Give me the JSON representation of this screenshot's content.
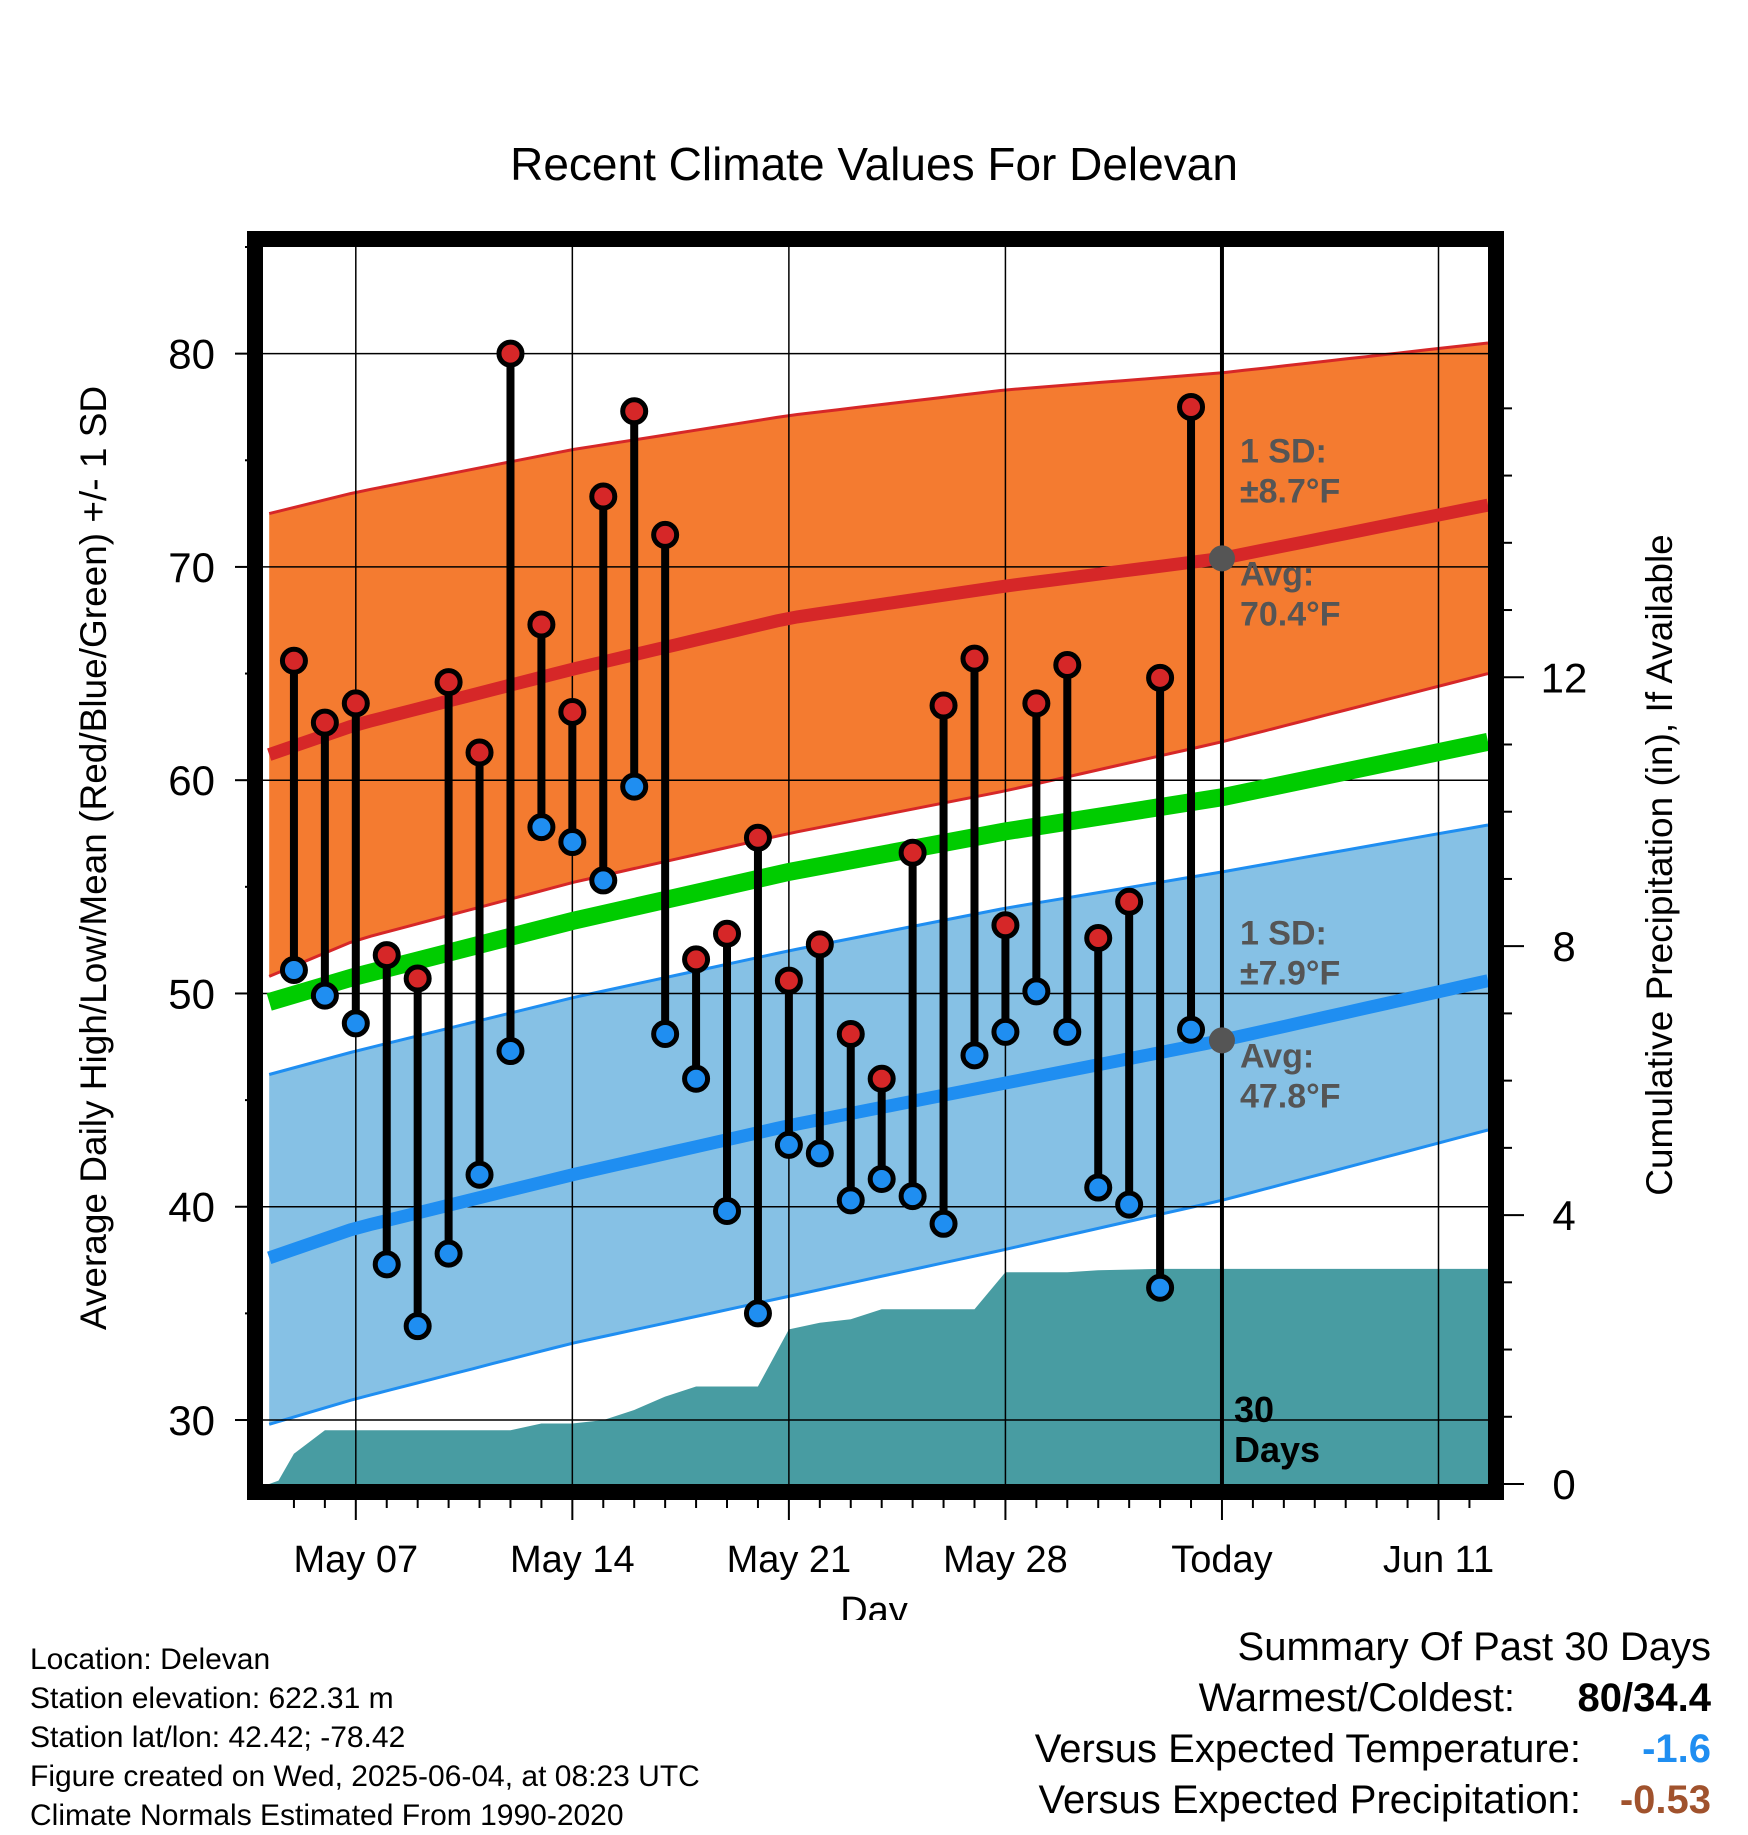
{
  "chart_data": {
    "type": "line",
    "title": "Recent Climate Values For Delevan",
    "xlabel": "Day",
    "ylabel": "Average Daily High/Low/Mean (Red/Blue/Green) +/- 1 SD",
    "y2label": "Cumulative Precipitation (in), If Available",
    "x_ticks": [
      {
        "day": 7,
        "label": "May 07"
      },
      {
        "day": 14,
        "label": "May 14"
      },
      {
        "day": 21,
        "label": "May 21"
      },
      {
        "day": 28,
        "label": "May 28"
      },
      {
        "day": 35,
        "label": "Today"
      },
      {
        "day": 42,
        "label": "Jun 11"
      }
    ],
    "xlim_days": [
      4,
      43.6
    ],
    "ylim": [
      27,
      85
    ],
    "y_ticks": [
      30,
      40,
      50,
      60,
      70,
      80
    ],
    "y2lim": [
      0,
      18.4
    ],
    "y2_ticks": [
      0,
      4,
      8,
      12
    ],
    "grid": true,
    "today_day": 35,
    "today_label": "30\nDays",
    "high_normal": {
      "name": "Average Daily High",
      "sd_label": "1 SD:\n±8.7°F",
      "avg_label": "Avg:\n70.4°F",
      "avg_at_today": 70.4,
      "x": [
        4.2,
        7,
        14,
        21,
        28,
        35,
        43.6
      ],
      "mean": [
        61.2,
        62.6,
        65.2,
        67.6,
        69.1,
        70.4,
        72.9
      ],
      "lower": [
        50.8,
        52.5,
        55.2,
        57.5,
        59.5,
        61.8,
        65.0
      ],
      "upper": [
        72.5,
        73.5,
        75.5,
        77.1,
        78.3,
        79.1,
        80.5
      ]
    },
    "low_normal": {
      "name": "Average Daily Low",
      "sd_label": "1 SD:\n±7.9°F",
      "avg_label": "Avg:\n47.8°F",
      "avg_at_today": 47.8,
      "x": [
        4.2,
        7,
        14,
        21,
        28,
        35,
        43.6
      ],
      "mean": [
        37.6,
        39.0,
        41.5,
        43.8,
        45.8,
        47.8,
        50.6
      ],
      "lower": [
        29.8,
        31.0,
        33.6,
        35.8,
        38.0,
        40.3,
        43.6
      ],
      "upper": [
        46.2,
        47.3,
        49.8,
        52.0,
        54.0,
        55.7,
        57.9
      ]
    },
    "mean_normal": {
      "name": "Average Daily Mean",
      "x": [
        4.2,
        7,
        14,
        21,
        28,
        35,
        43.6
      ],
      "values": [
        49.6,
        50.8,
        53.4,
        55.7,
        57.6,
        59.2,
        61.8
      ]
    },
    "observed": [
      {
        "day": 5,
        "high": 65.6,
        "low": 51.1
      },
      {
        "day": 6,
        "high": 62.7,
        "low": 49.9
      },
      {
        "day": 7,
        "high": 63.6,
        "low": 48.6
      },
      {
        "day": 8,
        "high": 51.8,
        "low": 37.3
      },
      {
        "day": 9,
        "high": 50.7,
        "low": 34.4
      },
      {
        "day": 10,
        "high": 64.6,
        "low": 37.8
      },
      {
        "day": 11,
        "high": 61.3,
        "low": 41.5
      },
      {
        "day": 12,
        "high": 80.0,
        "low": 47.3
      },
      {
        "day": 13,
        "high": 67.3,
        "low": 57.8
      },
      {
        "day": 14,
        "high": 63.2,
        "low": 57.1
      },
      {
        "day": 15,
        "high": 73.3,
        "low": 55.3
      },
      {
        "day": 16,
        "high": 77.3,
        "low": 59.7
      },
      {
        "day": 17,
        "high": 71.5,
        "low": 48.1
      },
      {
        "day": 18,
        "high": 51.6,
        "low": 46.0
      },
      {
        "day": 19,
        "high": 52.8,
        "low": 39.8
      },
      {
        "day": 20,
        "high": 57.3,
        "low": 35.0
      },
      {
        "day": 21,
        "high": 50.6,
        "low": 42.9
      },
      {
        "day": 22,
        "high": 52.3,
        "low": 42.5
      },
      {
        "day": 23,
        "high": 48.1,
        "low": 40.3
      },
      {
        "day": 24,
        "high": 46.0,
        "low": 41.3
      },
      {
        "day": 25,
        "high": 56.6,
        "low": 40.5
      },
      {
        "day": 26,
        "high": 63.5,
        "low": 39.2
      },
      {
        "day": 27,
        "high": 65.7,
        "low": 47.1
      },
      {
        "day": 28,
        "high": 53.2,
        "low": 48.2
      },
      {
        "day": 29,
        "high": 63.6,
        "low": 50.1
      },
      {
        "day": 30,
        "high": 65.4,
        "low": 48.2
      },
      {
        "day": 31,
        "high": 52.6,
        "low": 40.9
      },
      {
        "day": 32,
        "high": 54.3,
        "low": 40.1
      },
      {
        "day": 33,
        "high": 64.8,
        "low": 36.2
      },
      {
        "day": 34,
        "high": 77.5,
        "low": 48.3
      }
    ],
    "precip_cumulative": {
      "x": [
        4.2,
        4.5,
        5,
        6,
        7,
        10,
        12,
        13,
        14,
        15,
        16,
        17,
        18,
        19,
        20,
        21,
        22,
        23,
        24,
        25,
        26,
        27,
        28,
        29,
        30,
        31,
        33,
        35,
        43.6
      ],
      "values": [
        0,
        0.05,
        0.45,
        0.8,
        0.8,
        0.8,
        0.8,
        0.9,
        0.9,
        0.95,
        1.1,
        1.3,
        1.45,
        1.45,
        1.45,
        2.3,
        2.4,
        2.45,
        2.6,
        2.6,
        2.6,
        2.6,
        3.15,
        3.15,
        3.15,
        3.18,
        3.2,
        3.2,
        3.2
      ]
    },
    "colors": {
      "high_band": "#f47b30",
      "high_mean": "#d62728",
      "low_band": "#86c1e5",
      "low_mean": "#1f8ef1",
      "mean": "#00cc00",
      "precip": "#489ca2",
      "high_marker": "#d62728",
      "low_marker": "#1f8ef1",
      "label_gray": "#555555"
    }
  },
  "info": {
    "location": "Location: Delevan",
    "elevation": "Station elevation: 622.31 m",
    "latlon": "Station lat/lon: 42.42; -78.42",
    "created": "Figure created on Wed, 2025-06-04, at 08:23 UTC",
    "normals": "Climate Normals Estimated From 1990-2020"
  },
  "summary": {
    "title": "Summary Of Past 30 Days",
    "warmest_label": "Warmest/Coldest:",
    "warmest_value": "80/34.4",
    "temp_label": "Versus Expected Temperature:",
    "temp_value": "-1.6",
    "temp_color": "#1f8ef1",
    "precip_label": "Versus Expected Precipitation:",
    "precip_value": "-0.53",
    "precip_color": "#a0522d"
  }
}
